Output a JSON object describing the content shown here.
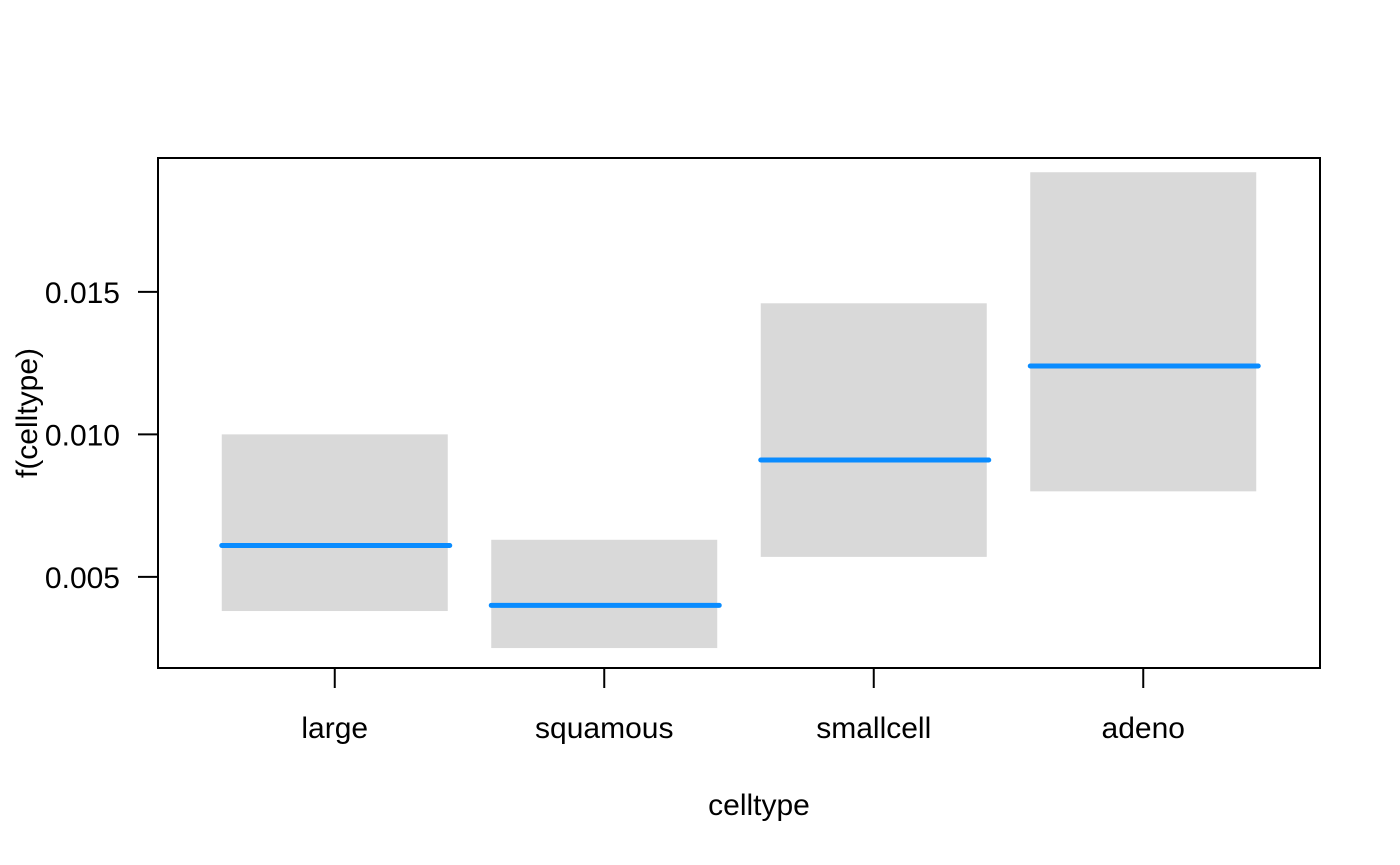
{
  "chart_data": {
    "type": "bar",
    "categories": [
      "large",
      "squamous",
      "smallcell",
      "adeno"
    ],
    "series": [
      {
        "estimate": [
          0.0061,
          0.004,
          0.0091,
          0.0124
        ],
        "lower": [
          0.0038,
          0.0025,
          0.0057,
          0.008
        ],
        "upper": [
          0.01,
          0.0063,
          0.0146,
          0.0192
        ]
      }
    ],
    "title": "",
    "xlabel": "celltype",
    "ylabel": "f(celltype)",
    "ylim": [
      0.0018,
      0.0197
    ],
    "yticks": [
      0.005,
      0.01,
      0.015
    ],
    "ytick_labels": [
      "0.005",
      "0.010",
      "0.015"
    ],
    "grid": false,
    "colors": {
      "estimate_line": "#0a8cff",
      "interval_band": "#d9d9d9",
      "frame": "#000000"
    }
  }
}
